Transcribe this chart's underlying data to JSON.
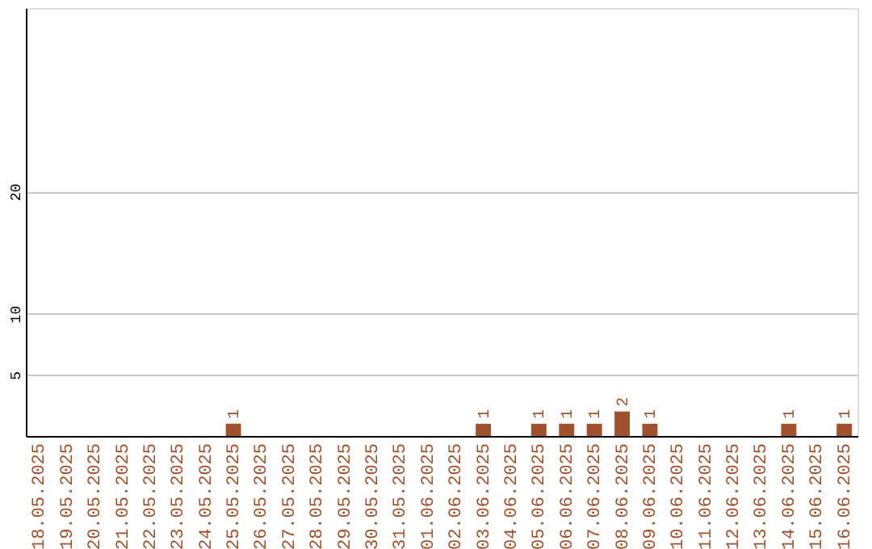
{
  "chart_data": {
    "type": "bar",
    "categories": [
      "18.05.2025",
      "19.05.2025",
      "20.05.2025",
      "21.05.2025",
      "22.05.2025",
      "23.05.2025",
      "24.05.2025",
      "25.05.2025",
      "26.05.2025",
      "27.05.2025",
      "28.05.2025",
      "29.05.2025",
      "30.05.2025",
      "31.05.2025",
      "01.06.2025",
      "02.06.2025",
      "03.06.2025",
      "04.06.2025",
      "05.06.2025",
      "06.06.2025",
      "07.06.2025",
      "08.06.2025",
      "09.06.2025",
      "10.06.2025",
      "11.06.2025",
      "12.06.2025",
      "13.06.2025",
      "14.06.2025",
      "15.06.2025",
      "16.06.2025"
    ],
    "values": [
      0,
      0,
      0,
      0,
      0,
      0,
      0,
      1,
      0,
      0,
      0,
      0,
      0,
      0,
      0,
      0,
      1,
      0,
      1,
      1,
      1,
      2,
      1,
      0,
      0,
      0,
      0,
      1,
      0,
      1
    ],
    "value_labels": [
      null,
      null,
      null,
      null,
      null,
      null,
      null,
      "1",
      null,
      null,
      null,
      null,
      null,
      null,
      null,
      null,
      "1",
      null,
      "1",
      "1",
      "1",
      "2",
      "1",
      null,
      null,
      null,
      null,
      "1",
      null,
      "1"
    ],
    "color": "#a0522d",
    "ylim": [
      0,
      35
    ],
    "yticks": [
      5,
      10,
      20
    ],
    "grid": "y"
  }
}
